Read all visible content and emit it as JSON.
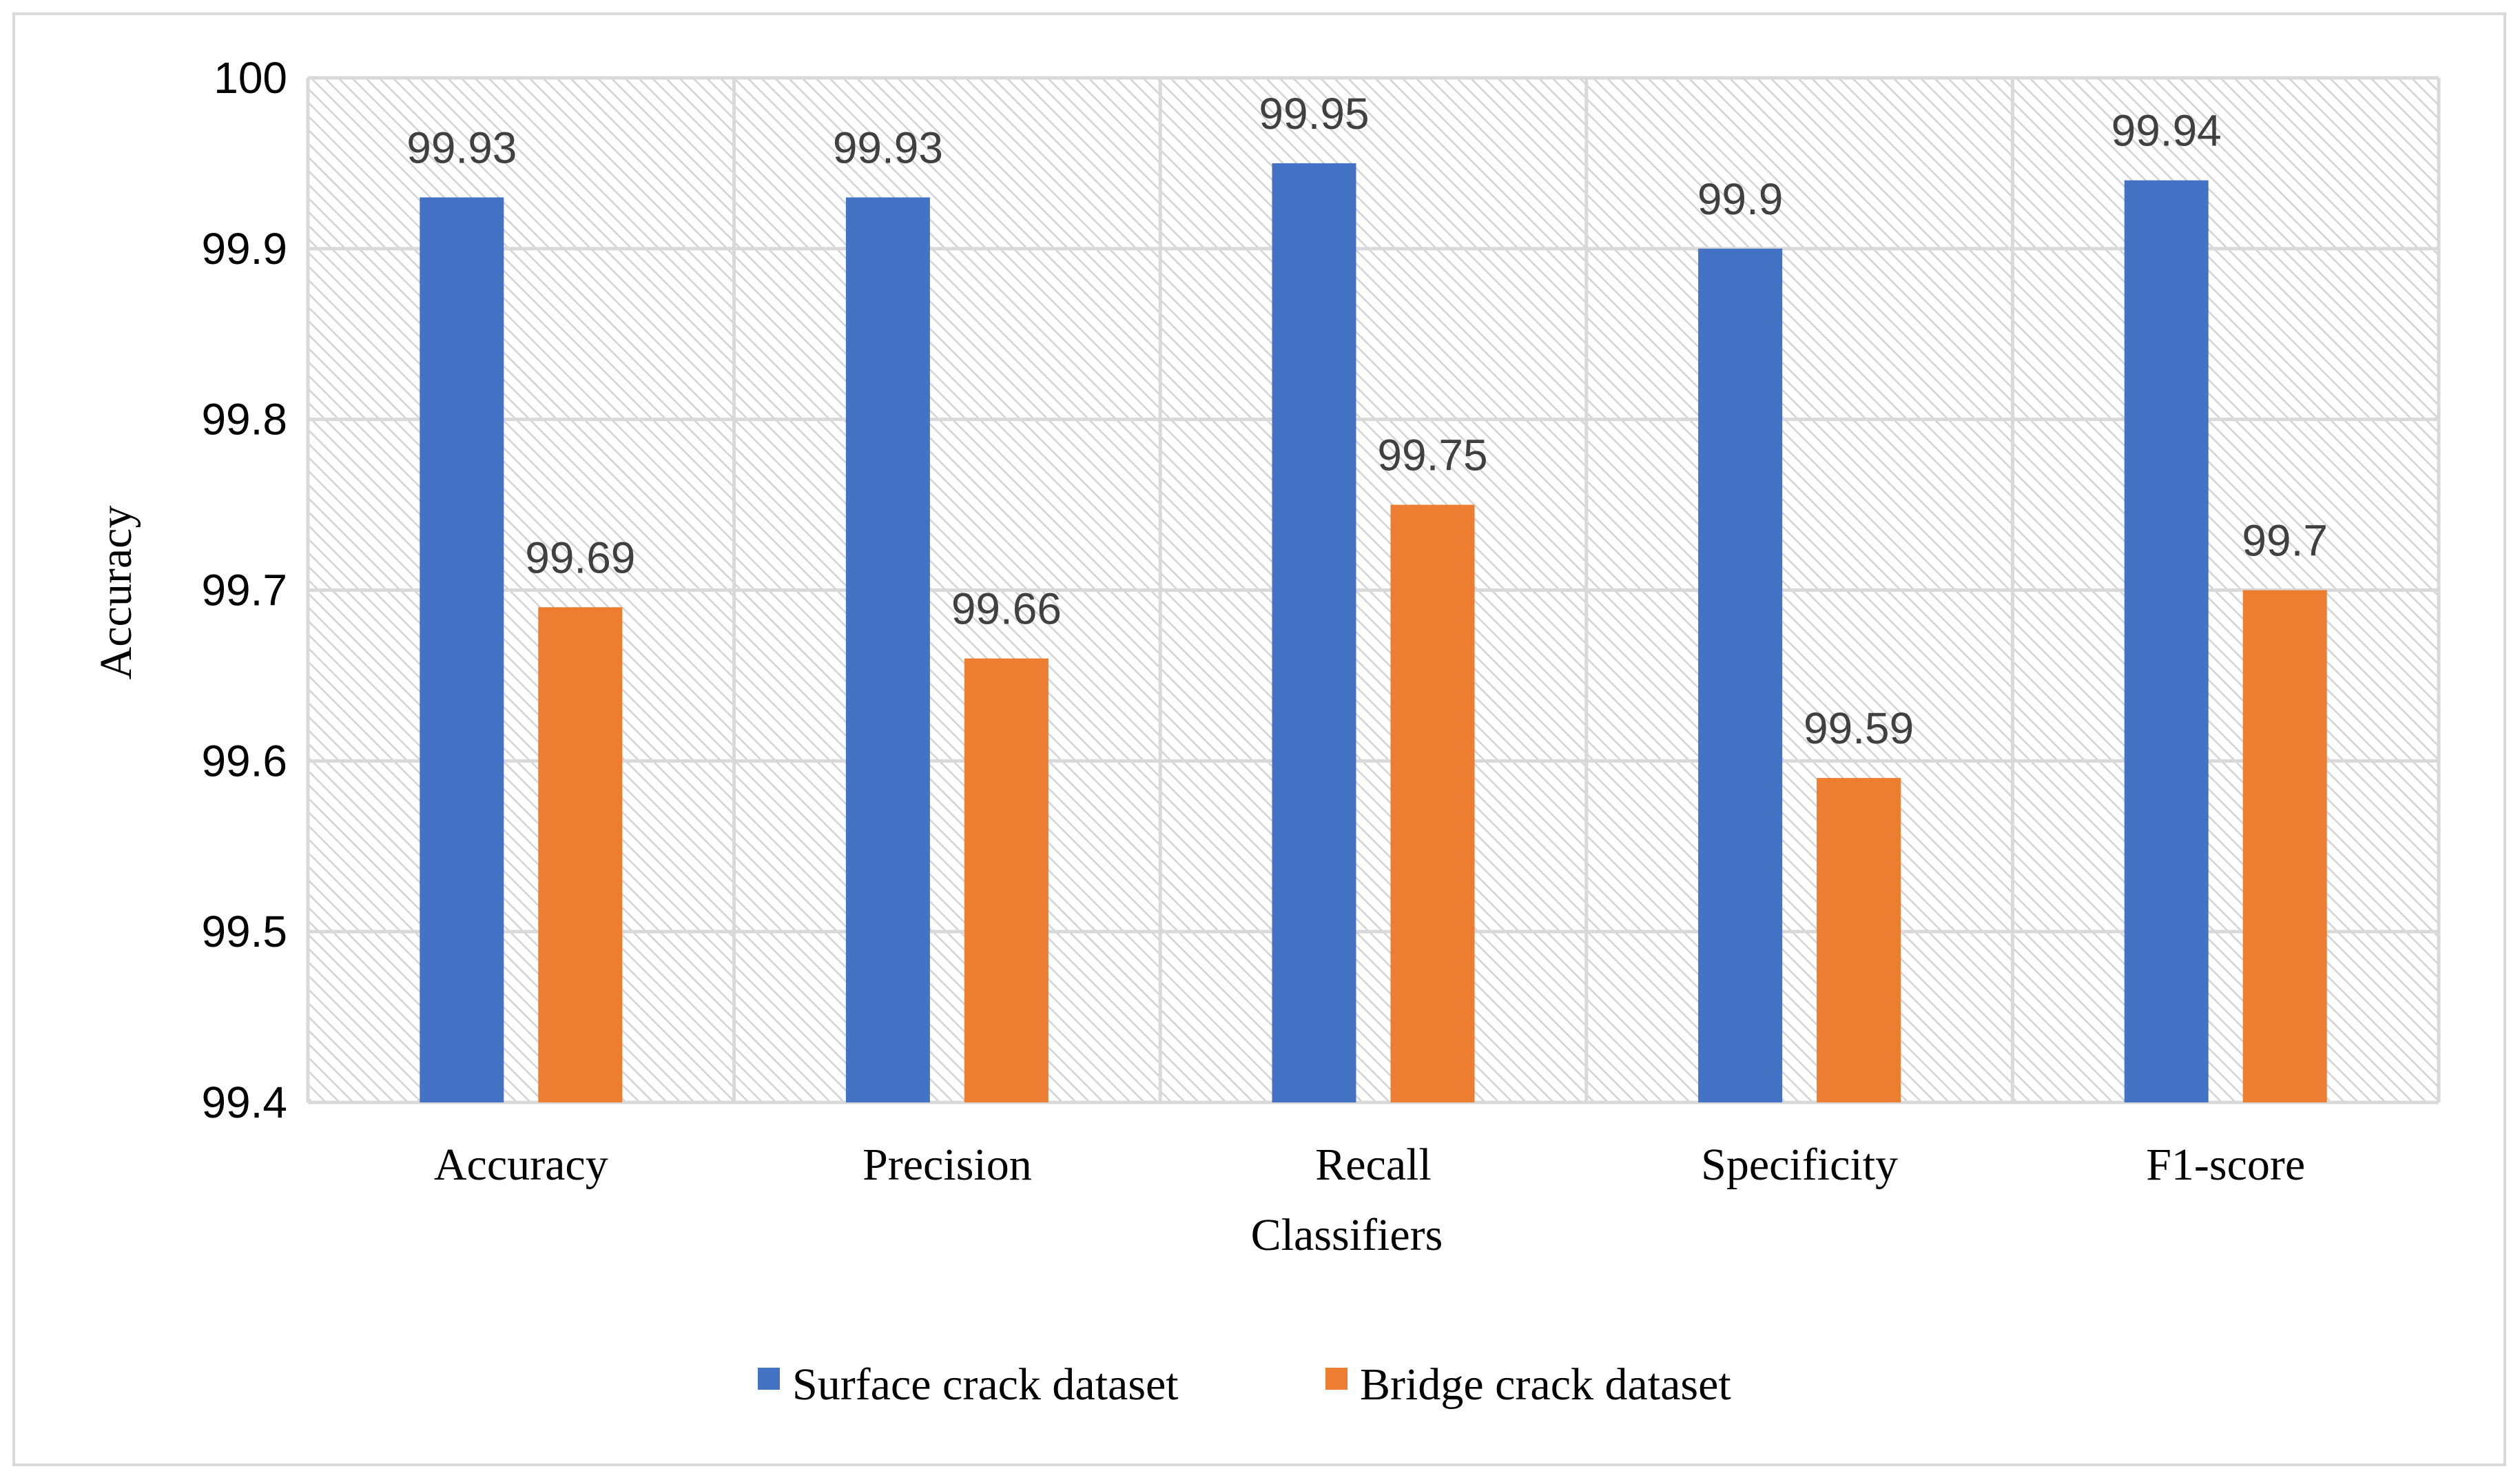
{
  "colors": {
    "surface": "#4472c4",
    "bridge": "#ed7d31",
    "grid": "#d9d9d9",
    "hatch": "#d0d0d0"
  },
  "chart_data": {
    "type": "bar",
    "title": "",
    "xlabel": "Classifiers",
    "ylabel": "Accuracy",
    "ylim": [
      99.4,
      100
    ],
    "yticks": [
      "99.4",
      "99.5",
      "99.6",
      "99.7",
      "99.8",
      "99.9",
      "100"
    ],
    "grid": true,
    "legend_position": "bottom",
    "categories": [
      "Accuracy",
      "Precision",
      "Recall",
      "Specificity",
      "F1-score"
    ],
    "series": [
      {
        "name": "Surface crack dataset",
        "color": "#4472c4",
        "values": [
          99.93,
          99.93,
          99.95,
          99.9,
          99.94
        ],
        "labels": [
          "99.93",
          "99.93",
          "99.95",
          "99.9",
          "99.94"
        ]
      },
      {
        "name": "Bridge crack dataset",
        "color": "#ed7d31",
        "values": [
          99.69,
          99.66,
          99.75,
          99.59,
          99.7
        ],
        "labels": [
          "99.69",
          "99.66",
          "99.75",
          "99.59",
          "99.7"
        ]
      }
    ]
  }
}
